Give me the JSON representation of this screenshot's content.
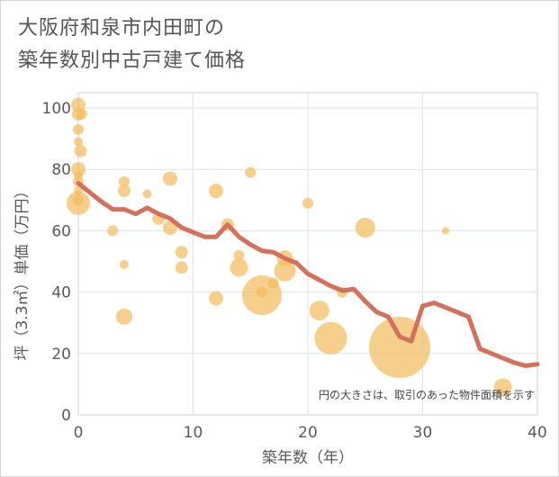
{
  "chart_data": {
    "type": "scatter",
    "title_lines": [
      "大阪府和泉市内田町の",
      "築年数別中古戸建て価格"
    ],
    "xlabel": "築年数（年）",
    "ylabel": "坪（3.3㎡）単価（万円）",
    "xlim": [
      0,
      40
    ],
    "ylim": [
      0,
      105
    ],
    "xticks": [
      0,
      10,
      20,
      30,
      40
    ],
    "yticks": [
      0,
      20,
      40,
      60,
      80,
      100
    ],
    "note": "円の大きさは、取引のあった物件面積を示す",
    "colors": {
      "bubble": "#f3bd5f",
      "line": "#d4705b",
      "grid": "#dde3ea"
    },
    "bubbles": [
      {
        "x": 0,
        "y": 101,
        "s": 8
      },
      {
        "x": 0,
        "y": 98,
        "s": 7
      },
      {
        "x": 0.3,
        "y": 98,
        "s": 6
      },
      {
        "x": 0,
        "y": 93,
        "s": 6
      },
      {
        "x": 0,
        "y": 89,
        "s": 5
      },
      {
        "x": 0.2,
        "y": 86,
        "s": 7
      },
      {
        "x": 0,
        "y": 80,
        "s": 8
      },
      {
        "x": 0,
        "y": 78,
        "s": 5
      },
      {
        "x": 0,
        "y": 76,
        "s": 6
      },
      {
        "x": 0,
        "y": 73,
        "s": 5
      },
      {
        "x": 0,
        "y": 70,
        "s": 6
      },
      {
        "x": 0,
        "y": 69,
        "s": 13
      },
      {
        "x": 3,
        "y": 60,
        "s": 6
      },
      {
        "x": 4,
        "y": 76,
        "s": 6
      },
      {
        "x": 4,
        "y": 73,
        "s": 7
      },
      {
        "x": 4,
        "y": 49,
        "s": 5
      },
      {
        "x": 4,
        "y": 32,
        "s": 9
      },
      {
        "x": 6,
        "y": 72,
        "s": 5
      },
      {
        "x": 7,
        "y": 64,
        "s": 7
      },
      {
        "x": 8,
        "y": 77,
        "s": 8
      },
      {
        "x": 8,
        "y": 61,
        "s": 8
      },
      {
        "x": 9,
        "y": 53,
        "s": 7
      },
      {
        "x": 9,
        "y": 48,
        "s": 7
      },
      {
        "x": 12,
        "y": 73,
        "s": 8
      },
      {
        "x": 12,
        "y": 38,
        "s": 8
      },
      {
        "x": 13,
        "y": 62,
        "s": 7
      },
      {
        "x": 14,
        "y": 52,
        "s": 6
      },
      {
        "x": 14,
        "y": 48,
        "s": 10
      },
      {
        "x": 15,
        "y": 79,
        "s": 6
      },
      {
        "x": 16,
        "y": 39,
        "s": 22
      },
      {
        "x": 16,
        "y": 40,
        "s": 6
      },
      {
        "x": 17,
        "y": 43,
        "s": 6
      },
      {
        "x": 18,
        "y": 51,
        "s": 9
      },
      {
        "x": 18,
        "y": 47,
        "s": 12
      },
      {
        "x": 20,
        "y": 69,
        "s": 6
      },
      {
        "x": 21,
        "y": 34,
        "s": 11
      },
      {
        "x": 22,
        "y": 25,
        "s": 18
      },
      {
        "x": 23,
        "y": 40,
        "s": 6
      },
      {
        "x": 25,
        "y": 61,
        "s": 11
      },
      {
        "x": 28,
        "y": 22,
        "s": 34
      },
      {
        "x": 32,
        "y": 60,
        "s": 4
      },
      {
        "x": 37,
        "y": 9,
        "s": 10
      }
    ],
    "line": {
      "x": [
        0,
        1,
        2,
        3,
        4,
        5,
        6,
        7,
        8,
        9,
        10,
        11,
        12,
        13,
        14,
        15,
        16,
        17,
        18,
        19,
        20,
        21,
        22,
        23,
        24,
        25,
        26,
        27,
        28,
        29,
        30,
        31,
        32,
        33,
        34,
        35,
        36,
        37,
        38,
        39,
        40
      ],
      "y": [
        75.5,
        72.5,
        69.5,
        67,
        67,
        65.5,
        67.5,
        65.5,
        64,
        61,
        59.5,
        58,
        58,
        62,
        58,
        55.5,
        53.5,
        53,
        51,
        49.5,
        46,
        44,
        42,
        40.5,
        41,
        37,
        33.5,
        32,
        25.5,
        24,
        35.5,
        36.5,
        35,
        33.5,
        32,
        21.5,
        20,
        18.5,
        17,
        16,
        16.5
      ]
    }
  }
}
